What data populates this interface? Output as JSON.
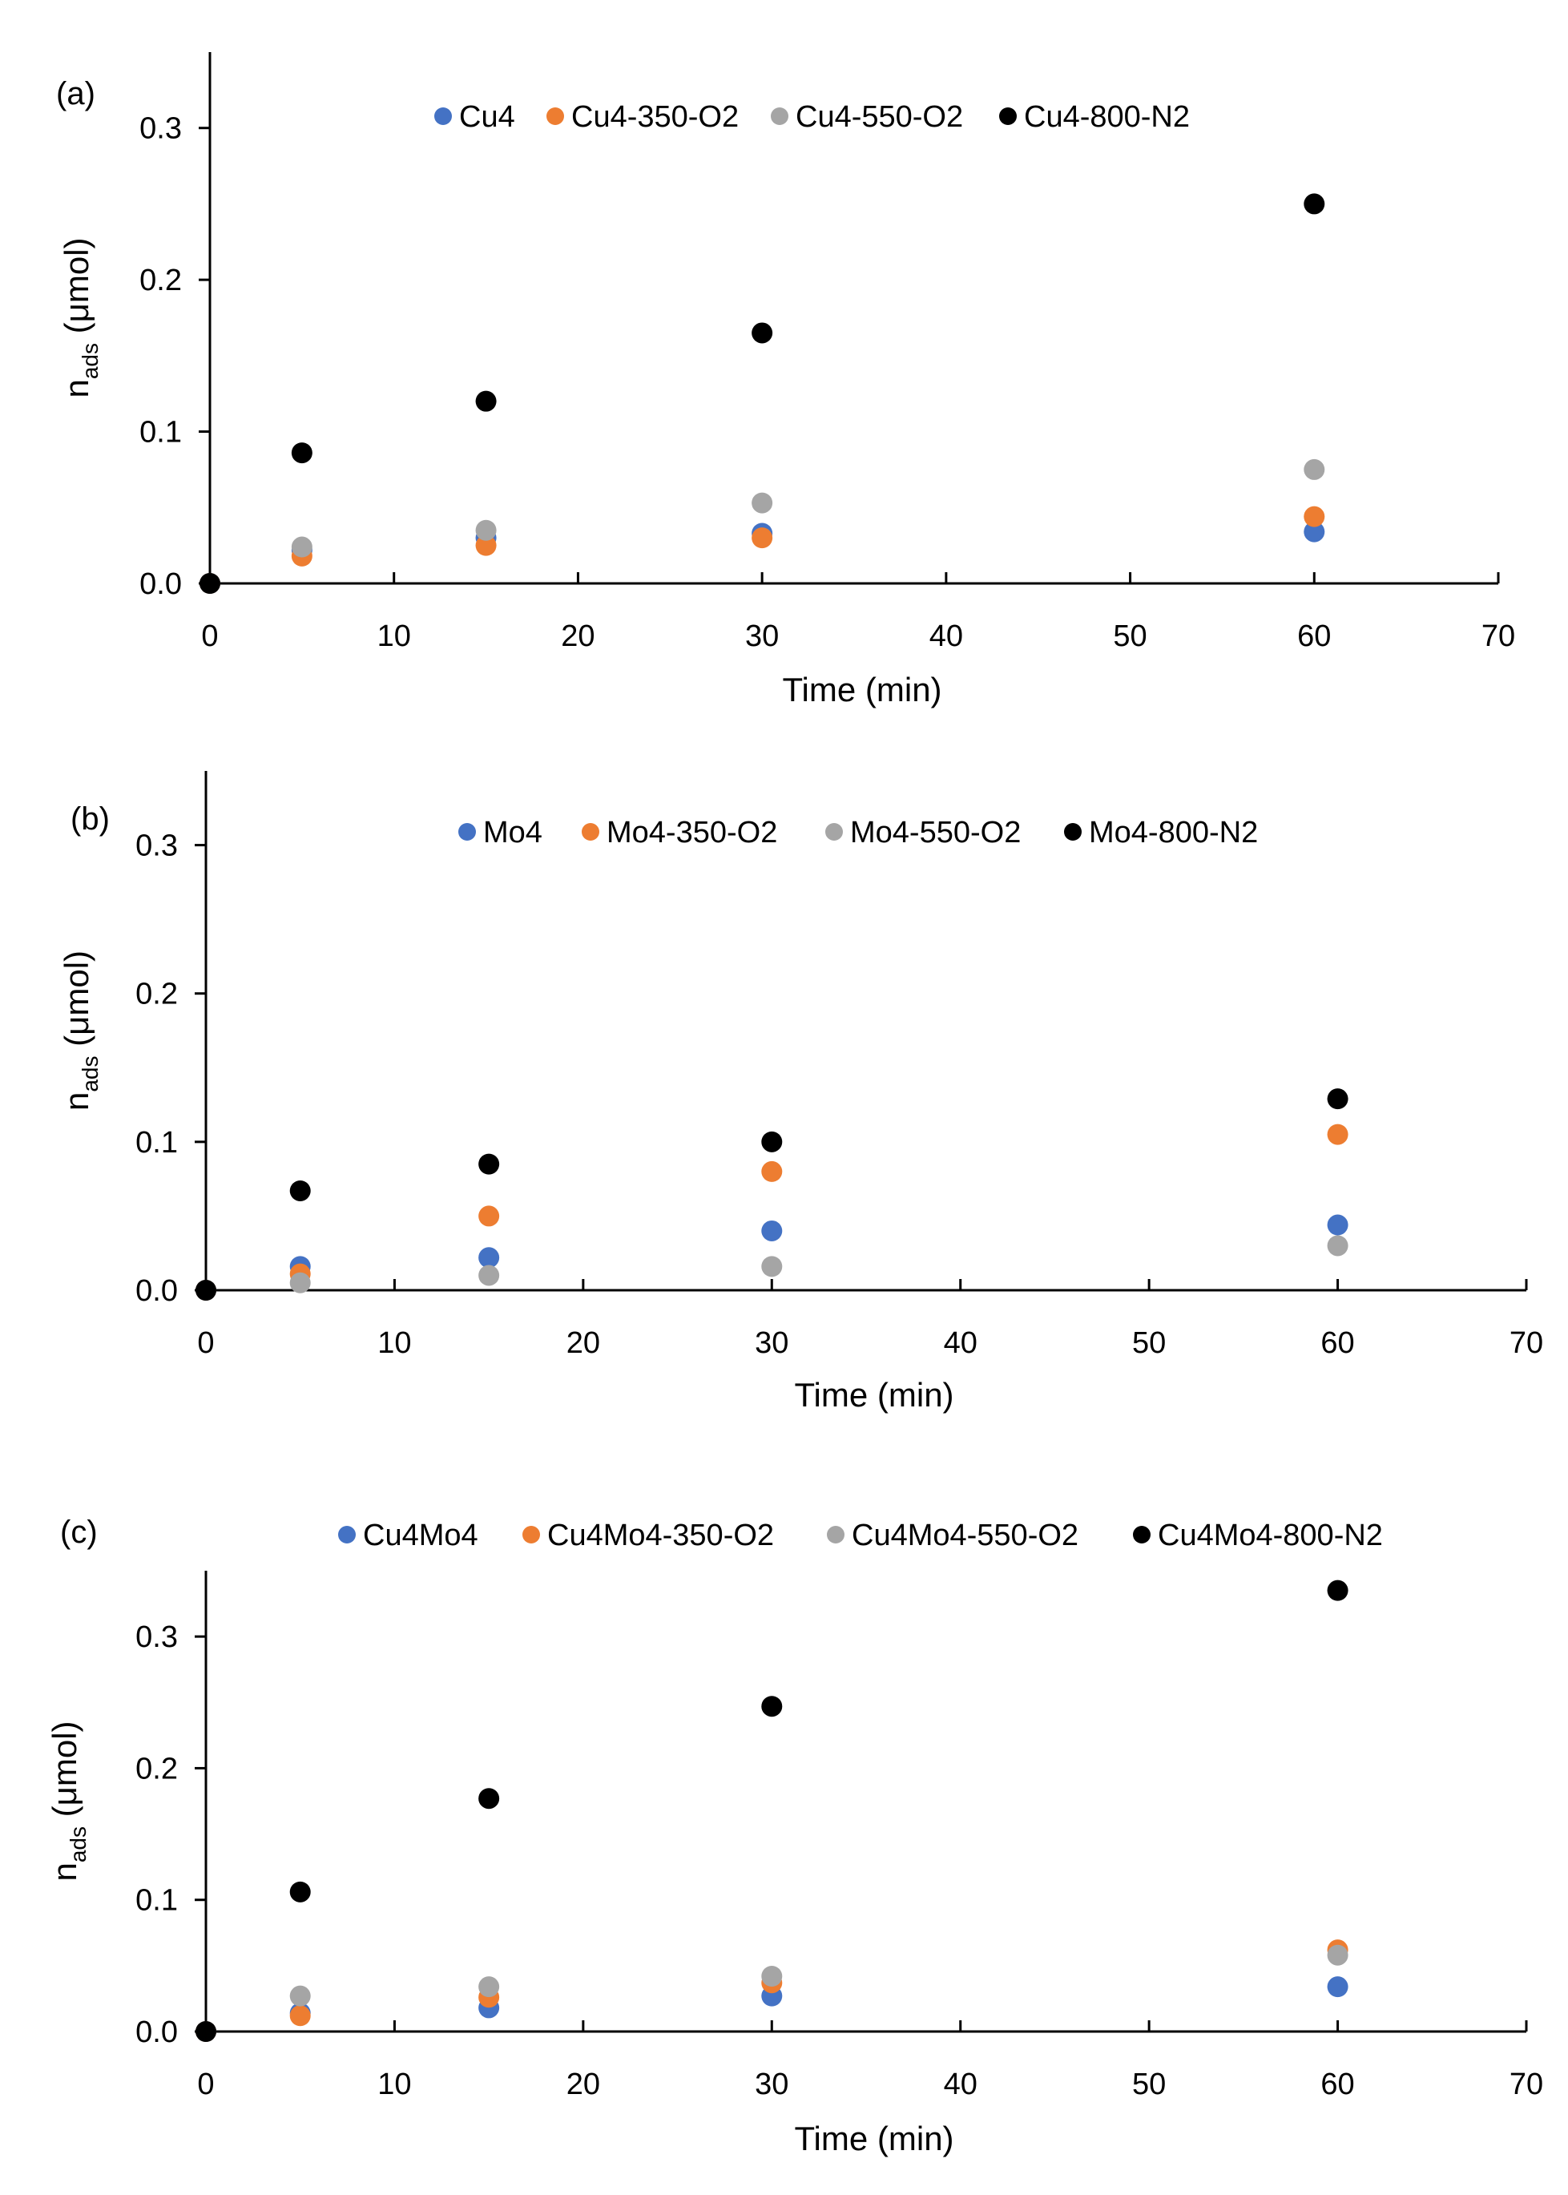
{
  "colors": {
    "blue": "#4472c4",
    "orange": "#ed7d31",
    "gray": "#a5a5a5",
    "black": "#000000"
  },
  "chart_data": [
    {
      "type": "scatter",
      "panel_label": "(a)",
      "xlabel": "Time (min)",
      "ylabel_main": "n",
      "ylabel_sub": "ads",
      "ylabel_unit": " (μmol)",
      "xlim": [
        0,
        70
      ],
      "ylim": [
        0,
        0.35
      ],
      "xticks": [
        0,
        10,
        20,
        30,
        40,
        50,
        60,
        70
      ],
      "xtick_labels": [
        "0",
        "10",
        "20",
        "30",
        "40",
        "50",
        "60",
        "70"
      ],
      "yticks": [
        0,
        0.1,
        0.2,
        0.3
      ],
      "ytick_labels": [
        "0.0",
        "0.1",
        "0.2",
        "0.3"
      ],
      "legend_position": "top",
      "grid": false,
      "x": [
        0,
        5,
        15,
        30,
        60
      ],
      "series": [
        {
          "name": "Cu4",
          "color": "#4472c4",
          "values": [
            0,
            0.022,
            0.03,
            0.033,
            0.034
          ]
        },
        {
          "name": "Cu4-350-O2",
          "color": "#ed7d31",
          "values": [
            0,
            0.018,
            0.025,
            0.03,
            0.044
          ]
        },
        {
          "name": "Cu4-550-O2",
          "color": "#a5a5a5",
          "values": [
            0,
            0.024,
            0.035,
            0.053,
            0.075
          ]
        },
        {
          "name": "Cu4-800-N2",
          "color": "#000000",
          "values": [
            0,
            0.086,
            0.12,
            0.165,
            0.25
          ]
        }
      ]
    },
    {
      "type": "scatter",
      "panel_label": "(b)",
      "xlabel": "Time (min)",
      "ylabel_main": "n",
      "ylabel_sub": "ads",
      "ylabel_unit": " (μmol)",
      "xlim": [
        0,
        70
      ],
      "ylim": [
        0,
        0.35
      ],
      "xticks": [
        0,
        10,
        20,
        30,
        40,
        50,
        60,
        70
      ],
      "xtick_labels": [
        "0",
        "10",
        "20",
        "30",
        "40",
        "50",
        "60",
        "70"
      ],
      "yticks": [
        0,
        0.1,
        0.2,
        0.3
      ],
      "ytick_labels": [
        "0.0",
        "0.1",
        "0.2",
        "0.3"
      ],
      "legend_position": "top",
      "grid": false,
      "x": [
        0,
        5,
        15,
        30,
        60
      ],
      "series": [
        {
          "name": "Mo4",
          "color": "#4472c4",
          "values": [
            0,
            0.016,
            0.022,
            0.04,
            0.044
          ]
        },
        {
          "name": "Mo4-350-O2",
          "color": "#ed7d31",
          "values": [
            0,
            0.011,
            0.05,
            0.08,
            0.105
          ]
        },
        {
          "name": "Mo4-550-O2",
          "color": "#a5a5a5",
          "values": [
            0,
            0.005,
            0.01,
            0.016,
            0.03
          ]
        },
        {
          "name": "Mo4-800-N2",
          "color": "#000000",
          "values": [
            0,
            0.067,
            0.085,
            0.1,
            0.129
          ]
        }
      ]
    },
    {
      "type": "scatter",
      "panel_label": "(c)",
      "xlabel": "Time (min)",
      "ylabel_main": "n",
      "ylabel_sub": "ads",
      "ylabel_unit": " (μmol)",
      "xlim": [
        0,
        70
      ],
      "ylim": [
        0,
        0.35
      ],
      "xticks": [
        0,
        10,
        20,
        30,
        40,
        50,
        60,
        70
      ],
      "xtick_labels": [
        "0",
        "10",
        "20",
        "30",
        "40",
        "50",
        "60",
        "70"
      ],
      "yticks": [
        0,
        0.1,
        0.2,
        0.3
      ],
      "ytick_labels": [
        "0.0",
        "0.1",
        "0.2",
        "0.3"
      ],
      "legend_position": "top",
      "grid": false,
      "x": [
        0,
        5,
        15,
        30,
        60
      ],
      "series": [
        {
          "name": "Cu4Mo4",
          "color": "#4472c4",
          "values": [
            0,
            0.014,
            0.018,
            0.027,
            0.034
          ]
        },
        {
          "name": "Cu4Mo4-350-O2",
          "color": "#ed7d31",
          "values": [
            0,
            0.012,
            0.026,
            0.037,
            0.062
          ]
        },
        {
          "name": "Cu4Mo4-550-O2",
          "color": "#a5a5a5",
          "values": [
            0,
            0.027,
            0.034,
            0.042,
            0.058
          ]
        },
        {
          "name": "Cu4Mo4-800-N2",
          "color": "#000000",
          "values": [
            0,
            0.106,
            0.177,
            0.247,
            0.335
          ]
        }
      ]
    }
  ]
}
